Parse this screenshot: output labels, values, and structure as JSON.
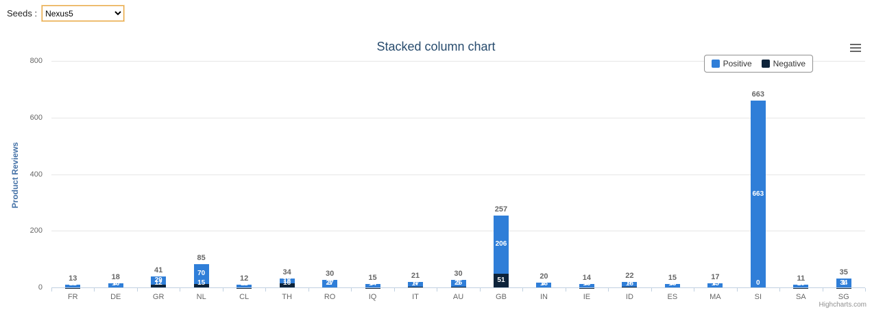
{
  "toolbar": {
    "seeds_label": "Seeds :",
    "seeds_value": "Nexus5"
  },
  "chart_data": {
    "type": "bar",
    "stacked": true,
    "title": "Stacked column chart",
    "xlabel": "",
    "ylabel": "Product Reviews",
    "ylim": [
      0,
      800
    ],
    "yticks": [
      0,
      200,
      400,
      600,
      800
    ],
    "grid": true,
    "legend_position": "top-right",
    "categories": [
      "FR",
      "DE",
      "GR",
      "NL",
      "CL",
      "TH",
      "RO",
      "IQ",
      "IT",
      "AU",
      "GB",
      "IN",
      "IE",
      "ID",
      "ES",
      "MA",
      "SI",
      "SA",
      "SG"
    ],
    "series": [
      {
        "name": "Positive",
        "color": "#2f7ed8",
        "values": [
          12,
          16,
          29,
          70,
          11,
          18,
          27,
          14,
          17,
          25,
          206,
          18,
          13,
          18,
          13,
          15,
          663,
          10,
          34
        ]
      },
      {
        "name": "Negative",
        "color": "#0d233a",
        "values": [
          1,
          2,
          12,
          15,
          1,
          16,
          3,
          1,
          4,
          5,
          51,
          2,
          1,
          4,
          2,
          2,
          0,
          1,
          1
        ]
      }
    ],
    "totals": [
      13,
      18,
      41,
      85,
      12,
      34,
      30,
      15,
      21,
      30,
      257,
      20,
      14,
      22,
      15,
      17,
      663,
      11,
      35
    ]
  },
  "icons": {
    "menu": "hamburger-three-lines"
  },
  "credits_label": "Highcharts.com"
}
